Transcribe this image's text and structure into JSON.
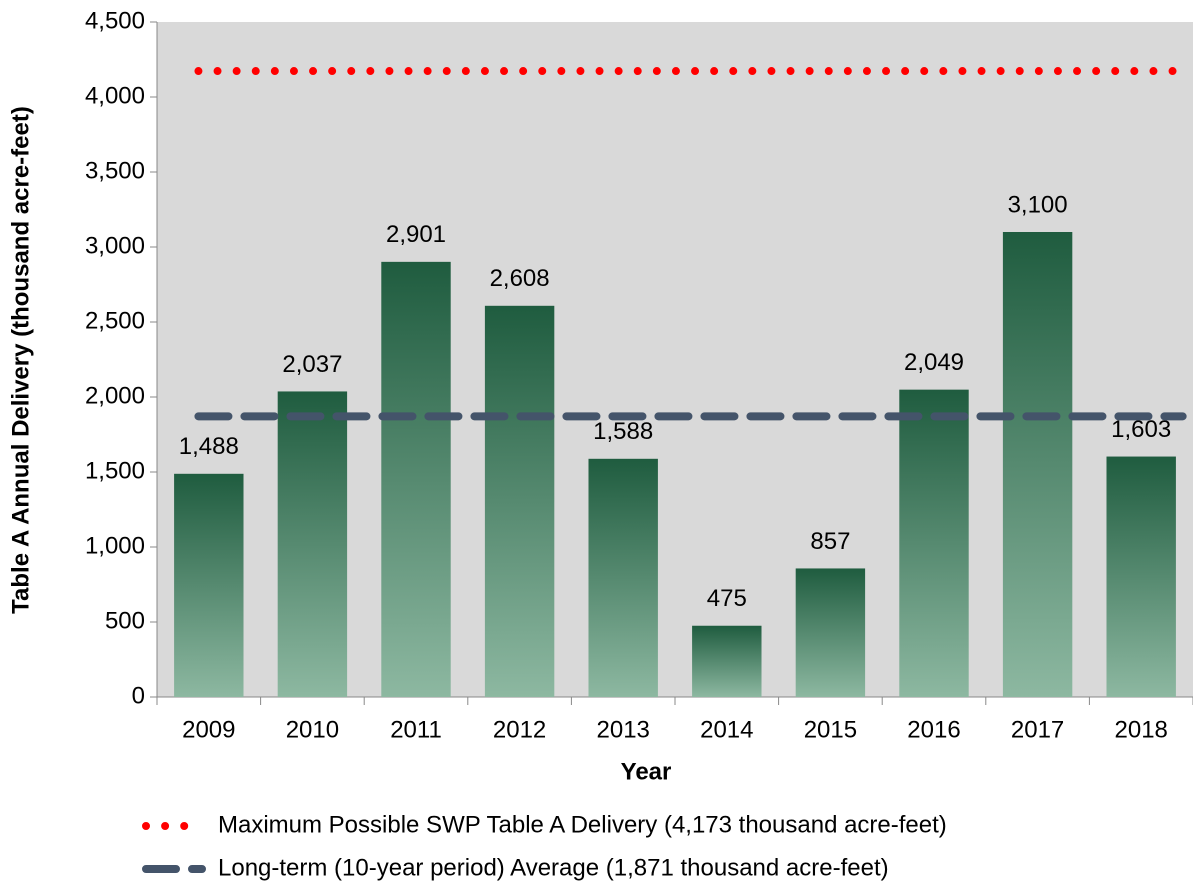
{
  "chart_data": {
    "type": "bar",
    "x_label": "Year",
    "y_label": "Table A Annual Delivery (thousand acre-feet)",
    "categories": [
      "2009",
      "2010",
      "2011",
      "2012",
      "2013",
      "2014",
      "2015",
      "2016",
      "2017",
      "2018"
    ],
    "values": [
      1488,
      2037,
      2901,
      2608,
      1588,
      475,
      857,
      2049,
      3100,
      1603
    ],
    "value_labels": [
      "1,488",
      "2,037",
      "2,901",
      "2,608",
      "1,588",
      "475",
      "857",
      "2,049",
      "3,100",
      "1,603"
    ],
    "color": "#2a6a4a",
    "ylim": [
      0,
      4500
    ],
    "yticks": [
      0,
      500,
      {
        "value": 1000,
        "label": "1,000"
      },
      {
        "value": 1500,
        "label": "1,500"
      },
      {
        "value": 2000,
        "label": "2,000"
      },
      {
        "value": 2500,
        "label": "2,500"
      },
      {
        "value": 3000,
        "label": "3,000"
      },
      {
        "value": 3500,
        "label": "3,500"
      },
      {
        "value": 4000,
        "label": "4,000"
      },
      {
        "value": 4500,
        "label": "4,500"
      }
    ],
    "grid": false,
    "reference_lines": [
      {
        "name": "Maximum Possible SWP Table A Delivery (4,173 thousand acre-feet)",
        "value": 4173,
        "color": "#ff0000",
        "style": "dotted"
      },
      {
        "name": "Long-term (10-year period) Average (1,871 thousand acre-feet)",
        "value": 1871,
        "color": "#44546a",
        "style": "dashed"
      }
    ]
  }
}
